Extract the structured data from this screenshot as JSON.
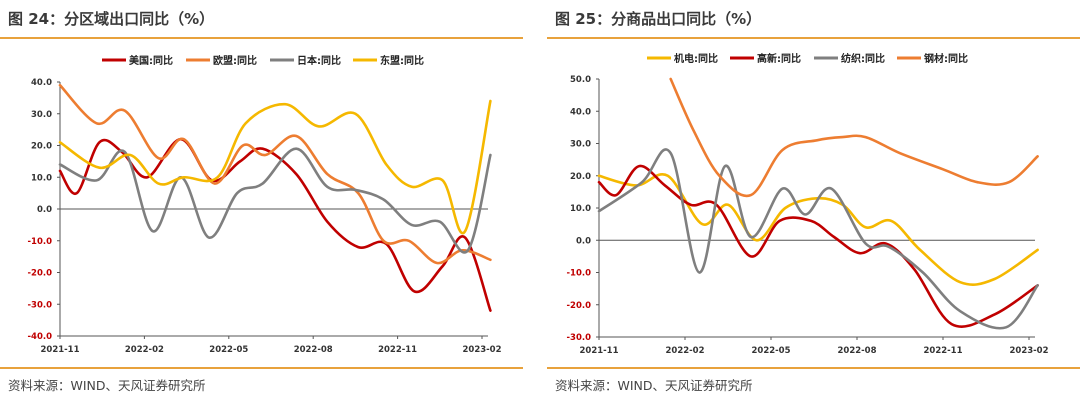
{
  "colors": {
    "rule": "#e8a23c",
    "axis": "#333333"
  },
  "chart_data": [
    {
      "type": "line",
      "title": "图 24：分区域出口同比（%）",
      "source": "资料来源：WIND、天风证券研究所",
      "xlabel": "",
      "ylabel": "",
      "ylim": [
        -40,
        40
      ],
      "yticks": [
        "40.0",
        "30.0",
        "20.0",
        "10.0",
        "0.0",
        "-10.0",
        "-20.0",
        "-30.0",
        "-40.0"
      ],
      "yticks_values": [
        40,
        30,
        20,
        10,
        0,
        -10,
        -20,
        -30,
        -40
      ],
      "xticks": [
        "2021-11",
        "2022-02",
        "2022-05",
        "2022-08",
        "2022-11",
        "2023-02"
      ],
      "x_range": [
        0,
        15
      ],
      "xticks_index": [
        0,
        3,
        6,
        9,
        12,
        15
      ],
      "legend_position": "top",
      "series": [
        {
          "name": "美国:同比",
          "color": "#c00000",
          "values": [
            12,
            5,
            21,
            18,
            10,
            22,
            9,
            15,
            19,
            11,
            -4,
            -12,
            -11,
            -26,
            -18,
            -9,
            -32
          ],
          "x": [
            0,
            0.6,
            1.4,
            2.2,
            3.1,
            4.3,
            5.4,
            6.4,
            7.2,
            8.4,
            9.5,
            10.6,
            11.6,
            12.6,
            13.6,
            14.4,
            15.3
          ]
        },
        {
          "name": "欧盟:同比",
          "color": "#ed7d31",
          "values": [
            39,
            27,
            31,
            16,
            22,
            8,
            20,
            17,
            23,
            11,
            5,
            -10,
            -10,
            -17,
            -13,
            -16
          ],
          "x": [
            0,
            1.3,
            2.3,
            3.5,
            4.4,
            5.5,
            6.5,
            7.3,
            8.4,
            9.5,
            10.6,
            11.5,
            12.4,
            13.4,
            14.3,
            15.3
          ]
        },
        {
          "name": "日本:同比",
          "color": "#7f7f7f",
          "values": [
            14,
            9,
            18,
            -7,
            10,
            -9,
            5,
            8,
            19,
            7,
            6,
            3,
            -5,
            -4,
            -13,
            17
          ],
          "x": [
            0,
            1.3,
            2.3,
            3.3,
            4.3,
            5.3,
            6.3,
            7.2,
            8.4,
            9.5,
            10.5,
            11.5,
            12.5,
            13.5,
            14.5,
            15.3
          ]
        },
        {
          "name": "东盟:同比",
          "color": "#f5b800",
          "values": [
            21,
            13,
            17,
            8,
            10,
            10,
            27,
            33,
            26,
            30,
            14,
            7,
            9,
            -7,
            34
          ],
          "x": [
            0,
            1.4,
            2.5,
            3.5,
            4.4,
            5.6,
            6.6,
            8.0,
            9.2,
            10.5,
            11.6,
            12.5,
            13.6,
            14.4,
            15.3
          ]
        }
      ]
    },
    {
      "type": "line",
      "title": "图 25：分商品出口同比（%）",
      "source": "资料来源：WIND、天风证券研究所",
      "xlabel": "",
      "ylabel": "",
      "ylim": [
        -30,
        50
      ],
      "yticks": [
        "50.0",
        "40.0",
        "30.0",
        "20.0",
        "10.0",
        "0.0",
        "-10.0",
        "-20.0",
        "-30.0"
      ],
      "yticks_values": [
        50,
        40,
        30,
        20,
        10,
        0,
        -10,
        -20,
        -30
      ],
      "xticks": [
        "2021-11",
        "2022-02",
        "2022-05",
        "2022-08",
        "2022-11",
        "2023-02"
      ],
      "x_range": [
        0,
        15
      ],
      "xticks_index": [
        0,
        3,
        6,
        9,
        12,
        15
      ],
      "legend_position": "top",
      "series": [
        {
          "name": "机电:同比",
          "color": "#f5b800",
          "values": [
            20,
            17,
            20,
            5,
            11,
            0,
            10,
            13,
            11,
            4,
            6,
            -3,
            -13,
            -12,
            -3
          ],
          "x": [
            0,
            1.3,
            2.4,
            3.6,
            4.5,
            5.5,
            6.5,
            7.6,
            8.5,
            9.3,
            10.2,
            11.2,
            12.6,
            13.8,
            15.3
          ]
        },
        {
          "name": "高新:同比",
          "color": "#c00000",
          "values": [
            18,
            14,
            23,
            17,
            11,
            11,
            -5,
            6,
            6,
            1,
            -4,
            -1,
            -9,
            -26,
            -23,
            -14
          ],
          "x": [
            0,
            0.6,
            1.4,
            2.3,
            3.2,
            4.1,
            5.3,
            6.3,
            7.4,
            8.2,
            9.1,
            10.0,
            11.0,
            12.3,
            13.8,
            15.3
          ]
        },
        {
          "name": "纺织:同比",
          "color": "#7f7f7f",
          "values": [
            9,
            18,
            27,
            -10,
            23,
            1,
            16,
            8,
            16,
            -1,
            -2,
            -10,
            -22,
            -27,
            -14
          ],
          "x": [
            0,
            1.5,
            2.5,
            3.5,
            4.4,
            5.3,
            6.4,
            7.2,
            8.1,
            9.3,
            10.1,
            11.3,
            12.6,
            14.2,
            15.3
          ]
        },
        {
          "name": "钢材:同比",
          "color": "#ed7d31",
          "values": [
            50,
            34,
            20,
            14,
            28,
            31,
            32,
            32,
            27,
            22,
            18,
            18,
            26
          ],
          "x": [
            2.5,
            3.3,
            4.2,
            5.3,
            6.4,
            7.6,
            8.5,
            9.3,
            10.5,
            12.0,
            13.2,
            14.3,
            15.3
          ]
        }
      ]
    }
  ]
}
